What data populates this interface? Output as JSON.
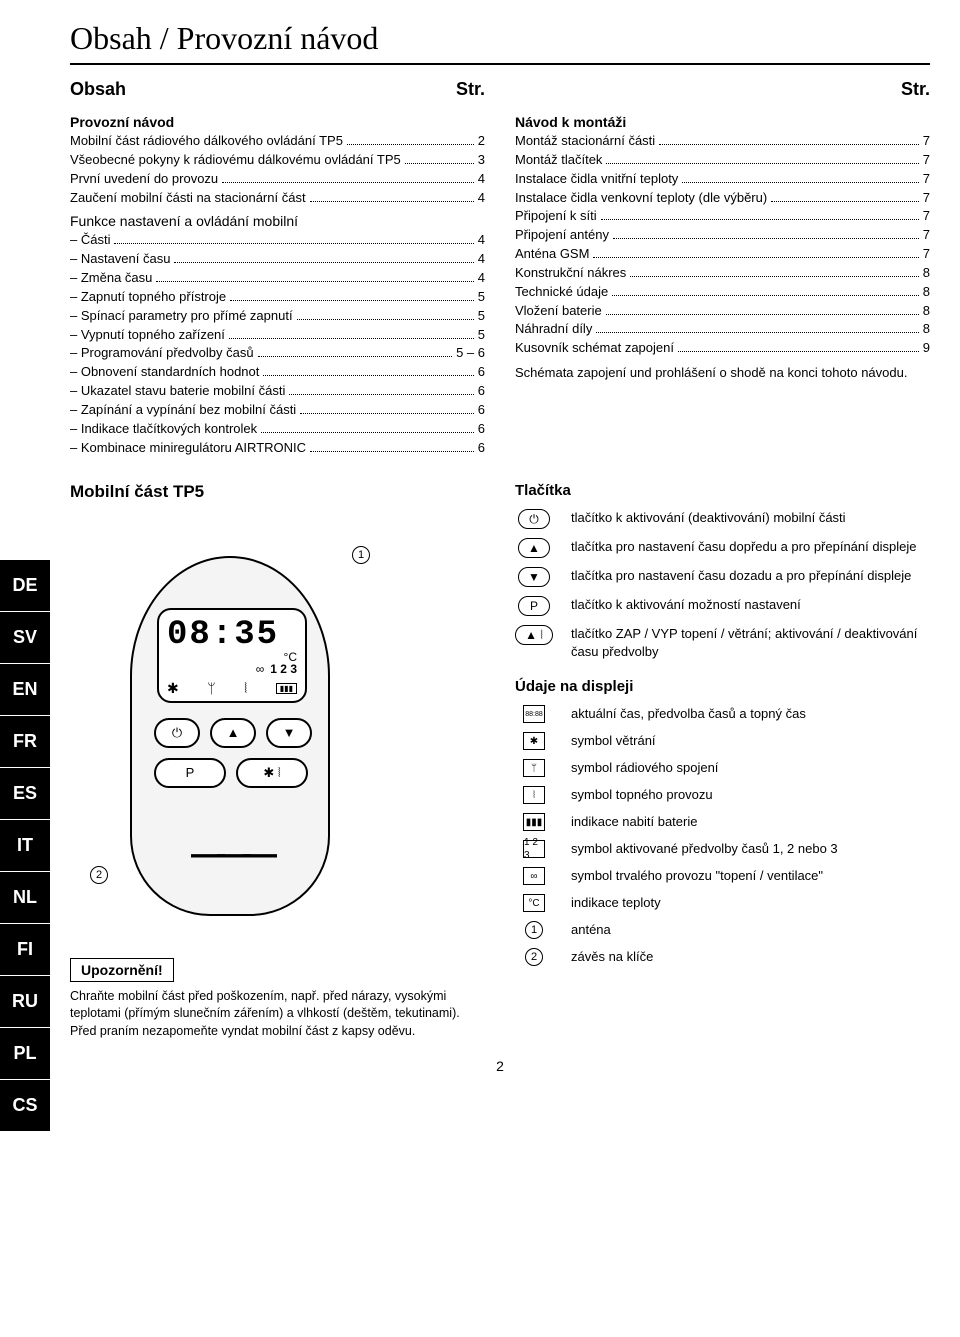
{
  "title": "Obsah / Provozní návod",
  "page_number": "2",
  "lang_tabs": [
    "DE",
    "SV",
    "EN",
    "FR",
    "ES",
    "IT",
    "NL",
    "FI",
    "RU",
    "PL",
    "CS"
  ],
  "left_header": {
    "title": "Obsah",
    "page_abbr": "Str."
  },
  "right_header": {
    "page_abbr": "Str."
  },
  "toc_left": {
    "heading": "Provozní návod",
    "entries": [
      {
        "t": "Mobilní část rádiového dálkového ovládání TP5",
        "p": "2"
      },
      {
        "t": "Všeobecné pokyny k rádiovému dálkovému ovládání TP5",
        "p": "3"
      },
      {
        "t": "První uvedení do provozu",
        "p": "4"
      },
      {
        "t": "Zaučení mobilní části na stacionární část",
        "p": "4"
      }
    ],
    "sub_heading": "Funkce nastavení a ovládání mobilní",
    "sub_entries": [
      {
        "t": "Části",
        "p": "4"
      },
      {
        "t": "Nastavení času",
        "p": "4"
      },
      {
        "t": "Změna času",
        "p": "4"
      },
      {
        "t": "Zapnutí topného přístroje",
        "p": "5"
      },
      {
        "t": "Spínací parametry pro přímé zapnutí",
        "p": "5"
      },
      {
        "t": "Vypnutí topného zařízení",
        "p": "5"
      },
      {
        "t": "Programování předvolby časů",
        "p": "5 – 6"
      },
      {
        "t": "Obnovení standardních hodnot",
        "p": "6"
      },
      {
        "t": "Ukazatel stavu baterie mobilní části",
        "p": "6"
      },
      {
        "t": "Zapínání a vypínání bez mobilní části",
        "p": "6"
      },
      {
        "t": "Indikace tlačítkových kontrolek",
        "p": "6"
      },
      {
        "t": "Kombinace miniregulátoru AIRTRONIC",
        "p": "6"
      }
    ]
  },
  "toc_right": {
    "heading": "Návod k montáži",
    "entries": [
      {
        "t": "Montáž stacionární části",
        "p": "7"
      },
      {
        "t": "Montáž tlačítek",
        "p": "7"
      },
      {
        "t": "Instalace čidla vnitřní teploty",
        "p": "7"
      },
      {
        "t": "Instalace čidla venkovní teploty (dle výběru)",
        "p": "7"
      },
      {
        "t": "Připojení k síti",
        "p": "7"
      },
      {
        "t": "Připojení antény",
        "p": "7"
      },
      {
        "t": "Anténa GSM",
        "p": "7"
      },
      {
        "t": "Konstrukční nákres",
        "p": "8"
      },
      {
        "t": "Technické údaje",
        "p": "8"
      },
      {
        "t": "Vložení baterie",
        "p": "8"
      },
      {
        "t": "Náhradní díly",
        "p": "8"
      },
      {
        "t": "Kusovník schémat zapojení",
        "p": "9"
      }
    ],
    "extra_text": "Schémata zapojení und prohlášení o shodě na konci tohoto návodu."
  },
  "device": {
    "title": "Mobilní část TP5",
    "time": "08:35",
    "temp_unit": "°C",
    "symbol_123": "1 2 3",
    "callout1": "1",
    "callout2": "2",
    "warn_title": "Upozornění!",
    "warn_body": "Chraňte mobilní část před poškozením, např. před nárazy, vysokými teplotami (přímým slunečním zářením) a vlhkostí (deštěm, tekutinami).\nPřed praním nezapomeňte vyndat mobilní část z kapsy oděvu."
  },
  "buttons": {
    "heading": "Tlačítka",
    "rows": [
      {
        "icon": "⏻",
        "text": "tlačítko k aktivování (deaktivování) mobilní části"
      },
      {
        "icon": "▲",
        "text": "tlačítka pro nastavení času dopředu a pro přepínání displeje"
      },
      {
        "icon": "▼",
        "text": "tlačítka pro nastavení času dozadu a pro přepínání displeje"
      },
      {
        "icon": "P",
        "text": "tlačítko k aktivování možností nastavení"
      },
      {
        "icon": "▲ ⦚",
        "text": "tlačítko ZAP / VYP topení / větrání; aktivování / deaktivování času předvolby"
      }
    ]
  },
  "display": {
    "heading": "Údaje na displeji",
    "rows": [
      {
        "icon": "88:88",
        "text": "aktuální čas, předvolba časů a topný čas"
      },
      {
        "icon": "✱",
        "text": "symbol větrání"
      },
      {
        "icon": "ᛘ",
        "text": "symbol rádiového spojení"
      },
      {
        "icon": "⦚",
        "text": "symbol topného provozu"
      },
      {
        "icon": "▮▮▮",
        "text": "indikace nabití baterie"
      },
      {
        "icon": "1 2 3",
        "text": "symbol aktivované předvolby časů 1, 2 nebo 3"
      },
      {
        "icon": "∞",
        "text": "symbol trvalého provozu \"topení / ventilace\""
      },
      {
        "icon": "°C",
        "text": "indikace teploty"
      },
      {
        "icon": "①",
        "text": "anténa"
      },
      {
        "icon": "②",
        "text": "závěs na klíče"
      }
    ]
  }
}
